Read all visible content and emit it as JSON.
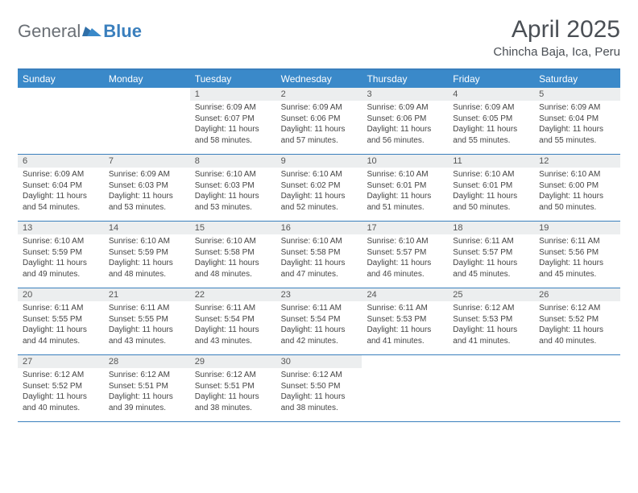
{
  "logo": {
    "part1": "General",
    "part2": "Blue"
  },
  "title": "April 2025",
  "location": "Chincha Baja, Ica, Peru",
  "colors": {
    "header_bg": "#3a89c9",
    "border": "#3a7fbd",
    "daynum_bg": "#eceeef",
    "logo_gray": "#6a6f75",
    "logo_blue": "#3a7fbd"
  },
  "weekdays": [
    "Sunday",
    "Monday",
    "Tuesday",
    "Wednesday",
    "Thursday",
    "Friday",
    "Saturday"
  ],
  "weeks": [
    [
      null,
      null,
      {
        "n": "1",
        "sr": "Sunrise: 6:09 AM",
        "ss": "Sunset: 6:07 PM",
        "dl": "Daylight: 11 hours and 58 minutes."
      },
      {
        "n": "2",
        "sr": "Sunrise: 6:09 AM",
        "ss": "Sunset: 6:06 PM",
        "dl": "Daylight: 11 hours and 57 minutes."
      },
      {
        "n": "3",
        "sr": "Sunrise: 6:09 AM",
        "ss": "Sunset: 6:06 PM",
        "dl": "Daylight: 11 hours and 56 minutes."
      },
      {
        "n": "4",
        "sr": "Sunrise: 6:09 AM",
        "ss": "Sunset: 6:05 PM",
        "dl": "Daylight: 11 hours and 55 minutes."
      },
      {
        "n": "5",
        "sr": "Sunrise: 6:09 AM",
        "ss": "Sunset: 6:04 PM",
        "dl": "Daylight: 11 hours and 55 minutes."
      }
    ],
    [
      {
        "n": "6",
        "sr": "Sunrise: 6:09 AM",
        "ss": "Sunset: 6:04 PM",
        "dl": "Daylight: 11 hours and 54 minutes."
      },
      {
        "n": "7",
        "sr": "Sunrise: 6:09 AM",
        "ss": "Sunset: 6:03 PM",
        "dl": "Daylight: 11 hours and 53 minutes."
      },
      {
        "n": "8",
        "sr": "Sunrise: 6:10 AM",
        "ss": "Sunset: 6:03 PM",
        "dl": "Daylight: 11 hours and 53 minutes."
      },
      {
        "n": "9",
        "sr": "Sunrise: 6:10 AM",
        "ss": "Sunset: 6:02 PM",
        "dl": "Daylight: 11 hours and 52 minutes."
      },
      {
        "n": "10",
        "sr": "Sunrise: 6:10 AM",
        "ss": "Sunset: 6:01 PM",
        "dl": "Daylight: 11 hours and 51 minutes."
      },
      {
        "n": "11",
        "sr": "Sunrise: 6:10 AM",
        "ss": "Sunset: 6:01 PM",
        "dl": "Daylight: 11 hours and 50 minutes."
      },
      {
        "n": "12",
        "sr": "Sunrise: 6:10 AM",
        "ss": "Sunset: 6:00 PM",
        "dl": "Daylight: 11 hours and 50 minutes."
      }
    ],
    [
      {
        "n": "13",
        "sr": "Sunrise: 6:10 AM",
        "ss": "Sunset: 5:59 PM",
        "dl": "Daylight: 11 hours and 49 minutes."
      },
      {
        "n": "14",
        "sr": "Sunrise: 6:10 AM",
        "ss": "Sunset: 5:59 PM",
        "dl": "Daylight: 11 hours and 48 minutes."
      },
      {
        "n": "15",
        "sr": "Sunrise: 6:10 AM",
        "ss": "Sunset: 5:58 PM",
        "dl": "Daylight: 11 hours and 48 minutes."
      },
      {
        "n": "16",
        "sr": "Sunrise: 6:10 AM",
        "ss": "Sunset: 5:58 PM",
        "dl": "Daylight: 11 hours and 47 minutes."
      },
      {
        "n": "17",
        "sr": "Sunrise: 6:10 AM",
        "ss": "Sunset: 5:57 PM",
        "dl": "Daylight: 11 hours and 46 minutes."
      },
      {
        "n": "18",
        "sr": "Sunrise: 6:11 AM",
        "ss": "Sunset: 5:57 PM",
        "dl": "Daylight: 11 hours and 45 minutes."
      },
      {
        "n": "19",
        "sr": "Sunrise: 6:11 AM",
        "ss": "Sunset: 5:56 PM",
        "dl": "Daylight: 11 hours and 45 minutes."
      }
    ],
    [
      {
        "n": "20",
        "sr": "Sunrise: 6:11 AM",
        "ss": "Sunset: 5:55 PM",
        "dl": "Daylight: 11 hours and 44 minutes."
      },
      {
        "n": "21",
        "sr": "Sunrise: 6:11 AM",
        "ss": "Sunset: 5:55 PM",
        "dl": "Daylight: 11 hours and 43 minutes."
      },
      {
        "n": "22",
        "sr": "Sunrise: 6:11 AM",
        "ss": "Sunset: 5:54 PM",
        "dl": "Daylight: 11 hours and 43 minutes."
      },
      {
        "n": "23",
        "sr": "Sunrise: 6:11 AM",
        "ss": "Sunset: 5:54 PM",
        "dl": "Daylight: 11 hours and 42 minutes."
      },
      {
        "n": "24",
        "sr": "Sunrise: 6:11 AM",
        "ss": "Sunset: 5:53 PM",
        "dl": "Daylight: 11 hours and 41 minutes."
      },
      {
        "n": "25",
        "sr": "Sunrise: 6:12 AM",
        "ss": "Sunset: 5:53 PM",
        "dl": "Daylight: 11 hours and 41 minutes."
      },
      {
        "n": "26",
        "sr": "Sunrise: 6:12 AM",
        "ss": "Sunset: 5:52 PM",
        "dl": "Daylight: 11 hours and 40 minutes."
      }
    ],
    [
      {
        "n": "27",
        "sr": "Sunrise: 6:12 AM",
        "ss": "Sunset: 5:52 PM",
        "dl": "Daylight: 11 hours and 40 minutes."
      },
      {
        "n": "28",
        "sr": "Sunrise: 6:12 AM",
        "ss": "Sunset: 5:51 PM",
        "dl": "Daylight: 11 hours and 39 minutes."
      },
      {
        "n": "29",
        "sr": "Sunrise: 6:12 AM",
        "ss": "Sunset: 5:51 PM",
        "dl": "Daylight: 11 hours and 38 minutes."
      },
      {
        "n": "30",
        "sr": "Sunrise: 6:12 AM",
        "ss": "Sunset: 5:50 PM",
        "dl": "Daylight: 11 hours and 38 minutes."
      },
      null,
      null,
      null
    ]
  ]
}
